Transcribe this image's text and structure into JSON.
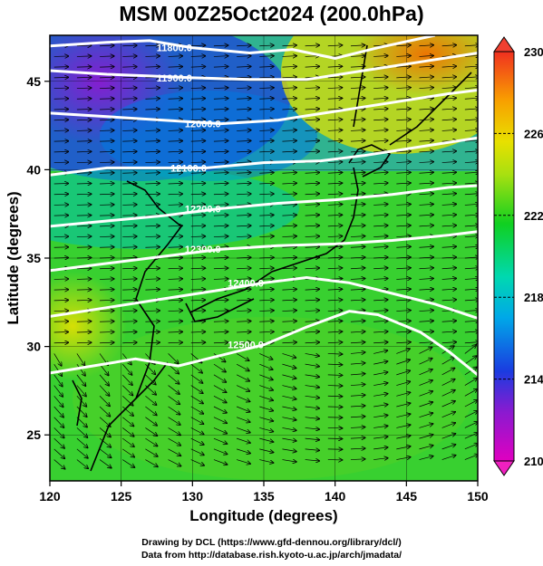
{
  "title": "MSM 00Z25Oct2024 (200.0hPa)",
  "credits": {
    "line1": "Drawing by DCL (https://www.gfd-dennou.org/library/dcl/)",
    "line2": "Data from http://database.rish.kyoto-u.ac.jp/arch/jmadata/"
  },
  "axes": {
    "xlabel": "Longitude (degrees)",
    "ylabel": "Latitude  (degrees)",
    "xlim": [
      120,
      150
    ],
    "ylim": [
      22.4,
      47.6
    ],
    "xticks": [
      "120",
      "125",
      "130",
      "135",
      "140",
      "145",
      "150"
    ],
    "yticks": [
      "25",
      "30",
      "35",
      "40",
      "45"
    ]
  },
  "colorbar": {
    "min": 210,
    "max": 230,
    "labels": [
      "210",
      "214",
      "218",
      "222",
      "226",
      "230"
    ]
  },
  "contours": [
    {
      "label": "11800.0",
      "points": [
        [
          120,
          47.0
        ],
        [
          124,
          47.2
        ],
        [
          127,
          47.3
        ],
        [
          130,
          46.9
        ],
        [
          134,
          46.6
        ],
        [
          137,
          46.8
        ],
        [
          140,
          46.3
        ],
        [
          143,
          46.9
        ],
        [
          147,
          47.6
        ]
      ]
    },
    {
      "label": "11900.0",
      "points": [
        [
          120,
          45.6
        ],
        [
          124,
          45.4
        ],
        [
          127,
          45.3
        ],
        [
          130,
          45.2
        ],
        [
          134,
          45.1
        ],
        [
          138,
          45.1
        ],
        [
          142,
          45.6
        ],
        [
          146,
          46.1
        ],
        [
          150,
          46.6
        ]
      ]
    },
    {
      "label": "12000.0",
      "points": [
        [
          120,
          43.2
        ],
        [
          124,
          43.0
        ],
        [
          128,
          42.8
        ],
        [
          132,
          42.6
        ],
        [
          136,
          42.8
        ],
        [
          140,
          43.3
        ],
        [
          144,
          43.8
        ],
        [
          148,
          44.3
        ],
        [
          150,
          44.5
        ]
      ]
    },
    {
      "label": "12100.0",
      "points": [
        [
          120,
          39.7
        ],
        [
          124,
          40.1
        ],
        [
          128,
          40.1
        ],
        [
          131,
          40.1
        ],
        [
          135,
          40.4
        ],
        [
          139,
          40.5
        ],
        [
          142,
          40.8
        ],
        [
          146,
          41.3
        ],
        [
          150,
          41.8
        ]
      ]
    },
    {
      "label": "12200.0",
      "points": [
        [
          120,
          36.8
        ],
        [
          124,
          37.1
        ],
        [
          128,
          37.4
        ],
        [
          132,
          37.8
        ],
        [
          136,
          38.1
        ],
        [
          140,
          38.3
        ],
        [
          144,
          38.6
        ],
        [
          148,
          39.0
        ],
        [
          150,
          39.1
        ]
      ]
    },
    {
      "label": "12300.0",
      "points": [
        [
          120,
          34.3
        ],
        [
          124,
          34.7
        ],
        [
          128,
          35.1
        ],
        [
          132,
          35.5
        ],
        [
          136,
          35.7
        ],
        [
          140,
          35.8
        ],
        [
          144,
          36.0
        ],
        [
          148,
          36.3
        ],
        [
          150,
          36.5
        ]
      ]
    },
    {
      "label": "12400.0",
      "points": [
        [
          120,
          31.7
        ],
        [
          124,
          32.2
        ],
        [
          128,
          32.7
        ],
        [
          132,
          33.2
        ],
        [
          135,
          33.6
        ],
        [
          138,
          33.9
        ],
        [
          141,
          33.6
        ],
        [
          144,
          33.0
        ],
        [
          147,
          32.4
        ],
        [
          150,
          31.6
        ]
      ]
    },
    {
      "label": "12500.0",
      "points": [
        [
          120,
          28.5
        ],
        [
          123,
          28.9
        ],
        [
          126,
          29.3
        ],
        [
          129,
          28.9
        ],
        [
          132,
          29.5
        ],
        [
          135,
          30.1
        ],
        [
          138,
          31.1
        ],
        [
          141,
          32.0
        ],
        [
          143,
          31.8
        ],
        [
          146,
          30.8
        ],
        [
          148,
          29.7
        ],
        [
          150,
          28.4
        ]
      ]
    }
  ]
}
